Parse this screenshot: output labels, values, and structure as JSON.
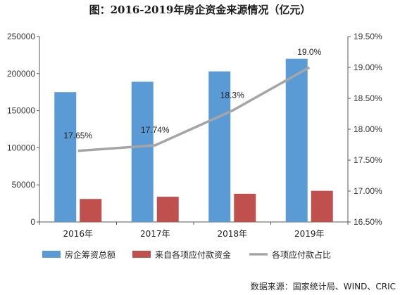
{
  "chart_data": {
    "type": "bar",
    "title": "图：2016-2019年房企资金来源情况（亿元）",
    "categories": [
      "2016年",
      "2017年",
      "2018年",
      "2019年"
    ],
    "series": [
      {
        "name": "房企筹资总额",
        "type": "bar",
        "axis": "left",
        "color": "#5b9bd5",
        "values": [
          175000,
          189000,
          203000,
          220000
        ]
      },
      {
        "name": "来自各项应付款资金",
        "type": "bar",
        "axis": "left",
        "color": "#c0504d",
        "values": [
          31000,
          34000,
          38000,
          42000
        ]
      },
      {
        "name": "各项应付款占比",
        "type": "line",
        "axis": "right",
        "color": "#a5a5a5",
        "values": [
          17.65,
          17.74,
          18.3,
          19.0
        ],
        "labels": [
          "17.65%",
          "17.74%",
          "18.3%",
          "19.0%"
        ]
      }
    ],
    "y_left": {
      "ylim": [
        0,
        250000
      ],
      "ticks": [
        "0",
        "50000",
        "100000",
        "150000",
        "200000",
        "250000"
      ]
    },
    "y_right": {
      "ylim": [
        16.5,
        19.5
      ],
      "ticks": [
        "16.50%",
        "17.00%",
        "17.50%",
        "18.00%",
        "18.50%",
        "19.00%",
        "19.50%"
      ]
    },
    "legend": {
      "placement": "bottom"
    },
    "grid": false
  },
  "source_note": "数据来源：国家统计局、WIND、CRIC"
}
